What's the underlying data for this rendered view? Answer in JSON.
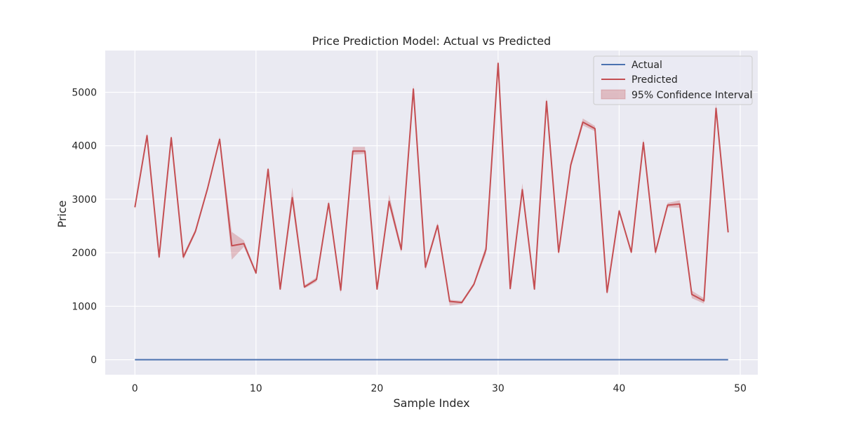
{
  "chart_data": {
    "type": "line",
    "title": "Price Prediction Model: Actual vs Predicted",
    "xlabel": "Sample Index",
    "ylabel": "Price",
    "xlim": [
      -2.45,
      51.45
    ],
    "ylim": [
      -280,
      5780
    ],
    "xticks": [
      0,
      10,
      20,
      30,
      40,
      50
    ],
    "yticks": [
      0,
      1000,
      2000,
      3000,
      4000,
      5000
    ],
    "grid": true,
    "legend_position": "top-right",
    "x": [
      0,
      1,
      2,
      3,
      4,
      5,
      6,
      7,
      8,
      9,
      10,
      11,
      12,
      13,
      14,
      15,
      16,
      17,
      18,
      19,
      20,
      21,
      22,
      23,
      24,
      25,
      26,
      27,
      28,
      29,
      30,
      31,
      32,
      33,
      34,
      35,
      36,
      37,
      38,
      39,
      40,
      41,
      42,
      43,
      44,
      45,
      46,
      47,
      48,
      49
    ],
    "series": [
      {
        "name": "Actual",
        "color": "#4c72b0",
        "values": [
          0,
          0,
          0,
          0,
          0,
          0,
          0,
          0,
          0,
          0,
          0,
          0,
          0,
          0,
          0,
          0,
          0,
          0,
          0,
          0,
          0,
          0,
          0,
          0,
          0,
          0,
          0,
          0,
          0,
          0,
          0,
          0,
          0,
          0,
          0,
          0,
          0,
          0,
          0,
          0,
          0,
          0,
          0,
          0,
          0,
          0,
          0,
          0,
          0,
          0
        ]
      },
      {
        "name": "Predicted",
        "color": "#c44e52",
        "values": [
          2850,
          4190,
          1920,
          4150,
          1920,
          2400,
          3200,
          4120,
          2130,
          2170,
          1620,
          3560,
          1320,
          3030,
          1360,
          1500,
          2920,
          1300,
          3900,
          3900,
          1320,
          2960,
          2060,
          5060,
          1730,
          2510,
          1090,
          1070,
          1410,
          2060,
          5540,
          1330,
          3180,
          1320,
          4830,
          2010,
          3640,
          4440,
          4320,
          1260,
          2780,
          2010,
          4060,
          2010,
          2890,
          2910,
          1220,
          1100,
          4700,
          2380
        ]
      }
    ],
    "confidence_interval": {
      "name": "95% Confidence Interval",
      "color": "#c44e52",
      "lower": [
        2800,
        4150,
        1880,
        4110,
        1870,
        2360,
        3160,
        4070,
        1870,
        2110,
        1590,
        3520,
        1290,
        2920,
        1330,
        1460,
        2870,
        1240,
        3830,
        3850,
        1290,
        2870,
        2000,
        4980,
        1670,
        2460,
        1010,
        1040,
        1380,
        1980,
        5470,
        1300,
        3080,
        1290,
        4760,
        1960,
        3580,
        4380,
        4270,
        1220,
        2740,
        1980,
        3990,
        1950,
        2850,
        2840,
        1150,
        1050,
        4610,
        2350
      ],
      "upper": [
        2900,
        4230,
        1960,
        4190,
        1970,
        2440,
        3240,
        4170,
        2390,
        2230,
        1650,
        3600,
        1350,
        3220,
        1390,
        1540,
        2970,
        1360,
        3980,
        3980,
        1350,
        3090,
        2120,
        5140,
        1790,
        2560,
        1120,
        1100,
        1440,
        2140,
        5620,
        1360,
        3300,
        1350,
        4900,
        2060,
        3700,
        4510,
        4370,
        1300,
        2820,
        2040,
        4130,
        2070,
        2930,
        2980,
        1290,
        1150,
        4790,
        2410
      ]
    }
  }
}
